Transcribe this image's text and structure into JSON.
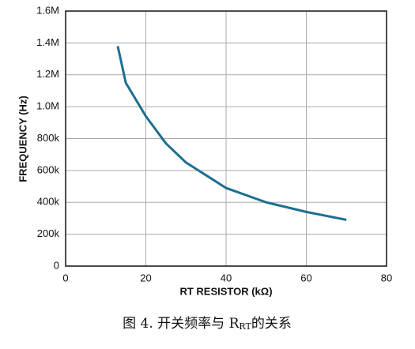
{
  "chart_data": {
    "type": "line",
    "x_label": "RT RESISTOR (kΩ)",
    "y_label": "FREQUENCY (Hz)",
    "caption": [
      "图 4. 开关频率与 R",
      "RT",
      "的关系"
    ],
    "x": [
      13,
      15,
      20,
      25,
      30,
      40,
      50,
      60,
      70
    ],
    "series": [
      {
        "name": "frequency",
        "color": "#1d6f8f",
        "values": [
          1380000,
          1150000,
          940000,
          770000,
          650000,
          490000,
          400000,
          340000,
          290000
        ]
      }
    ],
    "xlim": [
      0,
      80
    ],
    "xticks": [
      0,
      20,
      40,
      60,
      80
    ],
    "ylim": [
      0,
      1600000
    ],
    "yticks": [
      0,
      {
        "value": 200000,
        "label": "200k"
      },
      {
        "value": 400000,
        "label": "400k"
      },
      {
        "value": 600000,
        "label": "600k"
      },
      {
        "value": 800000,
        "label": "800k"
      },
      {
        "value": 1000000,
        "label": "1.0M"
      },
      {
        "value": 1200000,
        "label": "1.2M"
      },
      {
        "value": 1400000,
        "label": "1.4M"
      },
      {
        "value": 1600000,
        "label": "1.6M"
      }
    ],
    "grid": true
  }
}
